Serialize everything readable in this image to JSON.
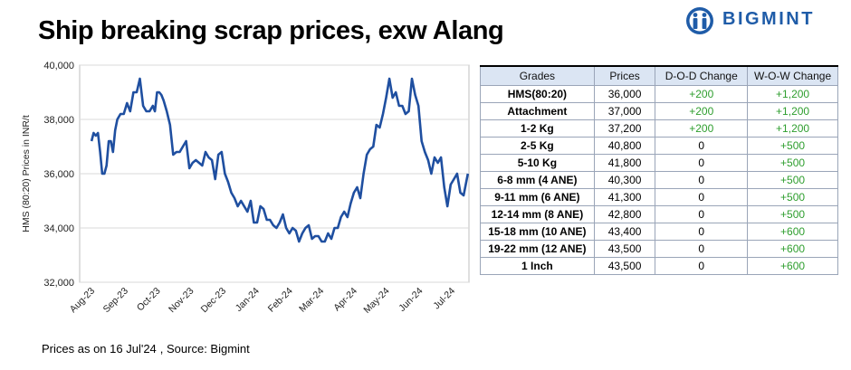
{
  "title": "Ship breaking scrap prices, exw Alang",
  "brand": {
    "name": "BIGMINT",
    "color": "#1f5ca8"
  },
  "footer": {
    "as_of": "Prices as on 16 Jul'24",
    "source": ", Source:  Bigmint"
  },
  "table": {
    "headers": [
      "Grades",
      "Prices",
      "D-O-D Change",
      "W-O-W Change"
    ],
    "rows": [
      [
        "HMS(80:20)",
        "36,000",
        "+200",
        "+1,200"
      ],
      [
        "Attachment",
        "37,000",
        "+200",
        "+1,200"
      ],
      [
        "1-2 Kg",
        "37,200",
        "+200",
        "+1,200"
      ],
      [
        "2-5 Kg",
        "40,800",
        "0",
        "+500"
      ],
      [
        "5-10 Kg",
        "41,800",
        "0",
        "+500"
      ],
      [
        "6-8 mm (4 ANE)",
        "40,300",
        "0",
        "+500"
      ],
      [
        "9-11 mm (6 ANE)",
        "41,300",
        "0",
        "+500"
      ],
      [
        "12-14 mm (8 ANE)",
        "42,800",
        "0",
        "+500"
      ],
      [
        "15-18 mm (10 ANE)",
        "43,400",
        "0",
        "+600"
      ],
      [
        "19-22 mm (12 ANE)",
        "43,500",
        "0",
        "+600"
      ],
      [
        "1 Inch",
        "43,500",
        "0",
        "+600"
      ]
    ]
  },
  "chart_data": {
    "type": "line",
    "ylabel": "HMS (80:20) Prices in INR/t",
    "xlabel": "",
    "ylim": [
      32000,
      40000
    ],
    "yticks": [
      "32,000",
      "34,000",
      "36,000",
      "38,000",
      "40,000"
    ],
    "ytick_values": [
      32000,
      34000,
      36000,
      38000,
      40000
    ],
    "xticks": [
      "Aug-23",
      "Sep-23",
      "Oct-23",
      "Nov-23",
      "Dec-23",
      "Jan-24",
      "Feb-24",
      "Mar-24",
      "Apr-24",
      "May-24",
      "Jun-24",
      "Jul-24"
    ],
    "grid": "horizontal",
    "line_color": "#1f4fa0",
    "series": [
      {
        "x": [
          "2023-08-01",
          "2023-08-03",
          "2023-08-05",
          "2023-08-07",
          "2023-08-09",
          "2023-08-11",
          "2023-08-13",
          "2023-08-15",
          "2023-08-17",
          "2023-08-19",
          "2023-08-21",
          "2023-08-23",
          "2023-08-25",
          "2023-08-28",
          "2023-08-31",
          "2023-09-03",
          "2023-09-06",
          "2023-09-09",
          "2023-09-12",
          "2023-09-15",
          "2023-09-18",
          "2023-09-21",
          "2023-09-24",
          "2023-09-27",
          "2023-09-29",
          "2023-10-01",
          "2023-10-03",
          "2023-10-05",
          "2023-10-07",
          "2023-10-10",
          "2023-10-13",
          "2023-10-16",
          "2023-10-19",
          "2023-10-22",
          "2023-10-25",
          "2023-10-28",
          "2023-10-31",
          "2023-11-03",
          "2023-11-06",
          "2023-11-09",
          "2023-11-12",
          "2023-11-15",
          "2023-11-18",
          "2023-11-21",
          "2023-11-24",
          "2023-11-27",
          "2023-11-30",
          "2023-12-03",
          "2023-12-06",
          "2023-12-09",
          "2023-12-12",
          "2023-12-15",
          "2023-12-18",
          "2023-12-21",
          "2023-12-24",
          "2023-12-27",
          "2023-12-30",
          "2024-01-02",
          "2024-01-05",
          "2024-01-08",
          "2024-01-11",
          "2024-01-14",
          "2024-01-17",
          "2024-01-20",
          "2024-01-23",
          "2024-01-26",
          "2024-01-29",
          "2024-02-01",
          "2024-02-04",
          "2024-02-07",
          "2024-02-10",
          "2024-02-13",
          "2024-02-16",
          "2024-02-19",
          "2024-02-22",
          "2024-02-25",
          "2024-02-28",
          "2024-03-02",
          "2024-03-05",
          "2024-03-08",
          "2024-03-11",
          "2024-03-14",
          "2024-03-17",
          "2024-03-20",
          "2024-03-23",
          "2024-03-26",
          "2024-03-29",
          "2024-04-01",
          "2024-04-04",
          "2024-04-07",
          "2024-04-10",
          "2024-04-13",
          "2024-04-16",
          "2024-04-19",
          "2024-04-22",
          "2024-04-25",
          "2024-04-28",
          "2024-05-01",
          "2024-05-04",
          "2024-05-07",
          "2024-05-10",
          "2024-05-13",
          "2024-05-16",
          "2024-05-19",
          "2024-05-22",
          "2024-05-25",
          "2024-05-28",
          "2024-05-31",
          "2024-06-03",
          "2024-06-06",
          "2024-06-09",
          "2024-06-12",
          "2024-06-15",
          "2024-06-18",
          "2024-06-21",
          "2024-06-24",
          "2024-06-27",
          "2024-06-30",
          "2024-07-03",
          "2024-07-06",
          "2024-07-09",
          "2024-07-12",
          "2024-07-16"
        ],
        "values": [
          37200,
          37500,
          37400,
          37500,
          36800,
          36000,
          36000,
          36300,
          37200,
          37200,
          36800,
          37600,
          38000,
          38200,
          38200,
          38600,
          38300,
          39000,
          39000,
          39500,
          38500,
          38300,
          38300,
          38500,
          38300,
          39000,
          39000,
          38900,
          38700,
          38300,
          37800,
          36700,
          36800,
          36800,
          37000,
          37200,
          36200,
          36400,
          36500,
          36400,
          36300,
          36800,
          36600,
          36500,
          35800,
          36700,
          36800,
          36000,
          35700,
          35300,
          35100,
          34800,
          35000,
          34800,
          34600,
          35000,
          34200,
          34200,
          34800,
          34700,
          34300,
          34300,
          34100,
          34000,
          34200,
          34500,
          34000,
          33800,
          34000,
          33900,
          33500,
          33800,
          34000,
          34100,
          33600,
          33700,
          33700,
          33500,
          33500,
          33800,
          33600,
          34000,
          34000,
          34400,
          34600,
          34400,
          34900,
          35300,
          35500,
          35100,
          36000,
          36700,
          36900,
          37000,
          37800,
          37700,
          38200,
          38800,
          39500,
          38800,
          39000,
          38500,
          38500,
          38200,
          38300,
          39500,
          38900,
          38500,
          37200,
          36800,
          36500,
          36000,
          36600,
          36400,
          36600,
          35500,
          34800,
          35600,
          35800,
          36000,
          35300,
          35200,
          36000
        ]
      }
    ]
  }
}
